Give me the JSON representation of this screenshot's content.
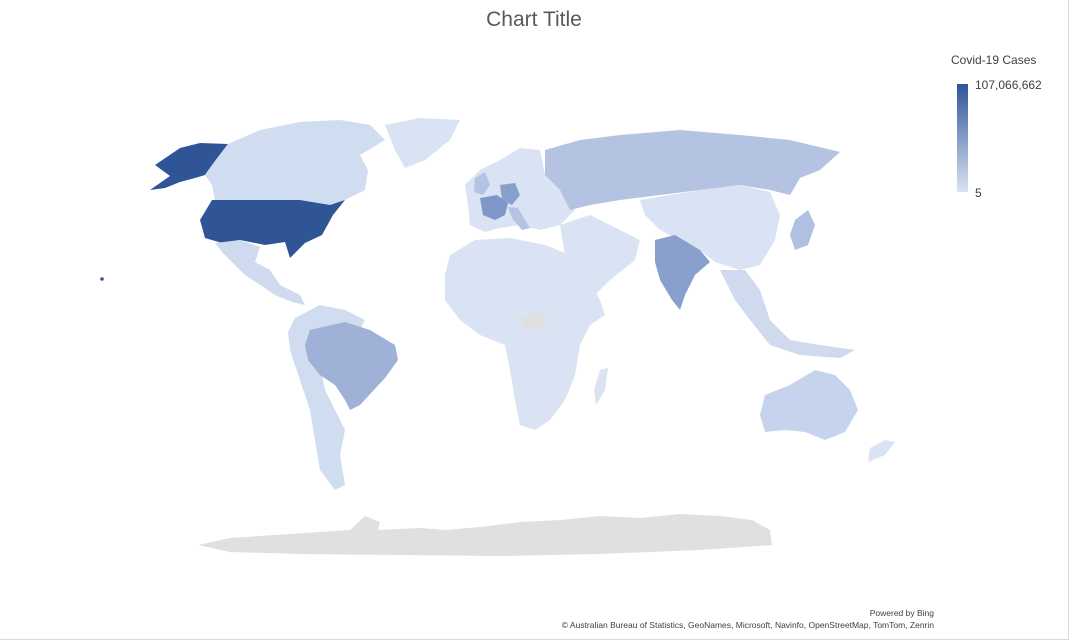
{
  "chart": {
    "title": "Chart Title"
  },
  "legend": {
    "title": "Covid-19 Cases",
    "max_label": "107,066,662",
    "min_label": "5",
    "color_max": "#2f5597",
    "color_min": "#dae3f3"
  },
  "credits": {
    "powered_by": "Powered by Bing",
    "attribution": "© Australian Bureau of Statistics, GeoNames, Microsoft, Navinfo, OpenStreetMap, TomTom, Zenrin"
  },
  "chart_data": {
    "type": "map",
    "title": "Chart Title",
    "legend_title": "Covid-19 Cases",
    "scale": {
      "min": 5,
      "max": 107066662,
      "low_color": "#dae3f3",
      "high_color": "#2f5597"
    },
    "no_data_color": "#e0e0e0",
    "regions": [
      {
        "name": "United States",
        "shade": 1.0
      },
      {
        "name": "India",
        "shade": 0.6
      },
      {
        "name": "Brazil",
        "shade": 0.45
      },
      {
        "name": "France",
        "shade": 0.55
      },
      {
        "name": "Germany",
        "shade": 0.5
      },
      {
        "name": "Russia",
        "shade": 0.3
      },
      {
        "name": "United Kingdom",
        "shade": 0.35
      },
      {
        "name": "Italy",
        "shade": 0.35
      },
      {
        "name": "Japan",
        "shade": 0.4
      },
      {
        "name": "Australia",
        "shade": 0.2
      },
      {
        "name": "Canada",
        "shade": 0.12
      },
      {
        "name": "China",
        "shade": 0.08
      },
      {
        "name": "Africa",
        "shade": 0.05
      },
      {
        "name": "South America (other)",
        "shade": 0.12
      },
      {
        "name": "Mexico",
        "shade": 0.15
      },
      {
        "name": "Greenland",
        "shade": 0.03
      },
      {
        "name": "Antarctica",
        "shade": null
      }
    ]
  }
}
